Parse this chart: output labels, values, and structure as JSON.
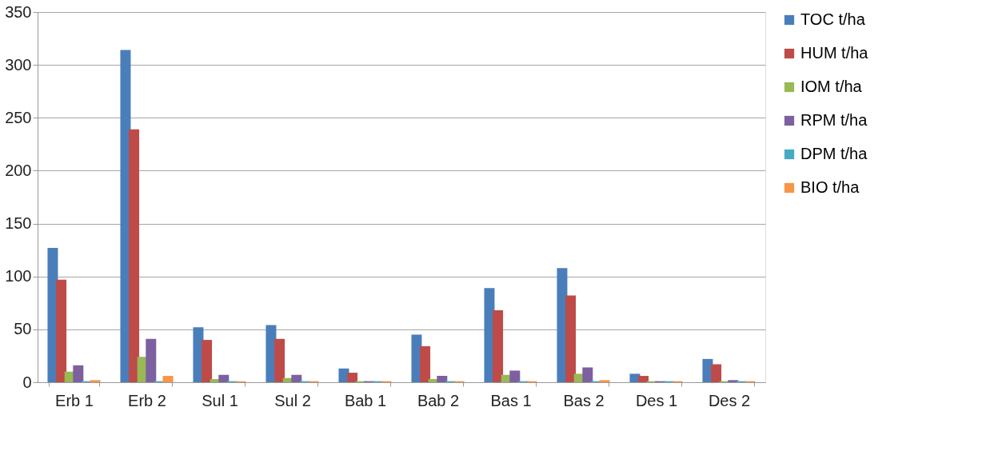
{
  "chart_data": {
    "type": "bar",
    "categories": [
      "Erb 1",
      "Erb 2",
      "Sul 1",
      "Sul 2",
      "Bab 1",
      "Bab 2",
      "Bas 1",
      "Bas 2",
      "Des 1",
      "Des 2"
    ],
    "series": [
      {
        "name": "TOC t/ha",
        "color": "#4a7ebb",
        "values": [
          127,
          314,
          52,
          54,
          13,
          45,
          89,
          108,
          8,
          22
        ]
      },
      {
        "name": "HUM t/ha",
        "color": "#be4b48",
        "values": [
          97,
          239,
          40,
          41,
          9,
          34,
          68,
          82,
          6,
          17
        ]
      },
      {
        "name": "IOM t/ha",
        "color": "#98b954",
        "values": [
          10,
          24,
          3,
          4,
          1,
          3,
          7,
          8,
          1,
          1
        ]
      },
      {
        "name": "RPM t/ha",
        "color": "#7d60a0",
        "values": [
          16,
          41,
          7,
          7,
          1,
          6,
          11,
          14,
          1,
          2
        ]
      },
      {
        "name": "DPM t/ha",
        "color": "#46aac5",
        "values": [
          1,
          1,
          1,
          1,
          1,
          1,
          1,
          1,
          1,
          1
        ]
      },
      {
        "name": "BIO t/ha",
        "color": "#f79646",
        "values": [
          2,
          6,
          1,
          1,
          1,
          1,
          1,
          2,
          1,
          1
        ]
      }
    ],
    "ylim": [
      0,
      350
    ],
    "yticks": [
      0,
      50,
      100,
      150,
      200,
      250,
      300,
      350
    ],
    "grid": "y",
    "legend": "right"
  }
}
